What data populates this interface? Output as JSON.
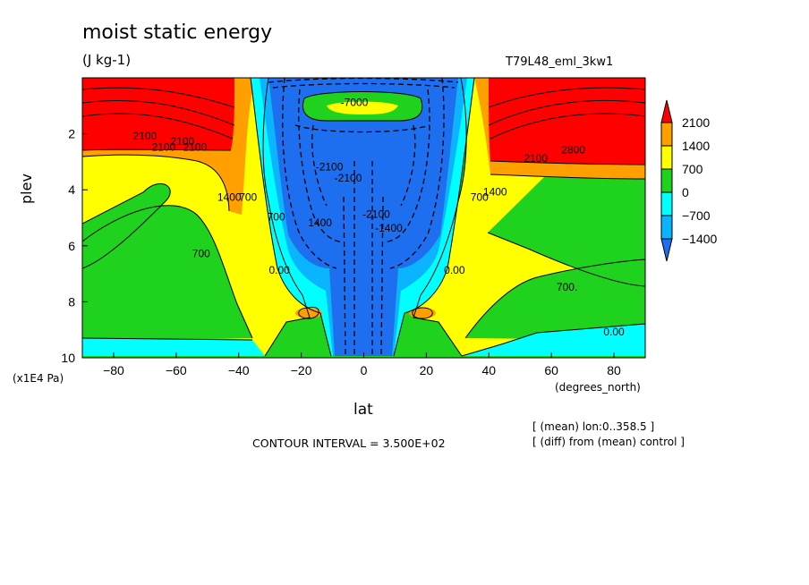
{
  "title": "moist static energy",
  "units": "(J kg-1)",
  "run_label": "T79L48_eml_3kw1",
  "ylabel": "plev",
  "ylabel_scale": "(x1E4 Pa)",
  "xlabel": "lat",
  "xlabel_units": "(degrees_north)",
  "contour_interval": "CONTOUR INTERVAL = 3.500E+02",
  "notes": [
    "[ (mean) lon:0..358.5 ]",
    "[ (diff) from (mean) control ]"
  ],
  "colors": {
    "lt_neg1400": "#1e6ef0",
    "neg1400_neg700": "#0ab4ff",
    "neg700_0": "#00ffff",
    "0_700": "#1ed21e",
    "700_1400": "#ffff00",
    "1400_2100": "#ffa000",
    "gt_2100": "#ff0000"
  },
  "chart_data": {
    "type": "heatmap",
    "title": "moist static energy",
    "subtitle": "(J kg-1)",
    "xlabel": "lat",
    "ylabel": "plev",
    "xlim": [
      -90,
      90
    ],
    "ylim": [
      10,
      0
    ],
    "grid": false,
    "x_ticks": [
      -80,
      -60,
      -40,
      -20,
      0,
      20,
      40,
      60,
      80
    ],
    "y_ticks": [
      2,
      4,
      6,
      8,
      10
    ],
    "colorbar": {
      "position": "right",
      "levels": [
        -1400,
        -700,
        0,
        700,
        1400,
        2100
      ],
      "tick_labels": [
        "2100",
        "1400",
        "700",
        "0",
        "−700",
        "−1400"
      ]
    },
    "contour_labels": [
      {
        "text": "2100",
        "lat": -70,
        "plev": 2.2
      },
      {
        "text": "2100",
        "lat": -64,
        "plev": 2.6
      },
      {
        "text": "2100",
        "lat": -58,
        "plev": 2.4
      },
      {
        "text": "2100",
        "lat": -54,
        "plev": 2.6
      },
      {
        "text": "1400",
        "lat": -43,
        "plev": 4.4
      },
      {
        "text": "700",
        "lat": -52,
        "plev": 6.4
      },
      {
        "text": "700",
        "lat": -37,
        "plev": 4.4
      },
      {
        "text": "700",
        "lat": -28,
        "plev": 5.1
      },
      {
        "text": "0.00",
        "lat": -27,
        "plev": 7.0
      },
      {
        "text": "1400",
        "lat": -14,
        "plev": 5.3
      },
      {
        "text": "-2100",
        "lat": -11,
        "plev": 3.3
      },
      {
        "text": "-2100",
        "lat": -5,
        "plev": 3.7
      },
      {
        "text": "-2100",
        "lat": 4,
        "plev": 5.0
      },
      {
        "text": "-1400",
        "lat": 8,
        "plev": 5.5
      },
      {
        "text": "-7000",
        "lat": -3,
        "plev": 1.0
      },
      {
        "text": "2800",
        "lat": 67,
        "plev": 2.7
      },
      {
        "text": "2100",
        "lat": 55,
        "plev": 3.0
      },
      {
        "text": "700",
        "lat": 37,
        "plev": 4.4
      },
      {
        "text": "1400",
        "lat": 42,
        "plev": 4.2
      },
      {
        "text": "0.00",
        "lat": 29,
        "plev": 7.0
      },
      {
        "text": "700.",
        "lat": 65,
        "plev": 7.6
      },
      {
        "text": "0.00",
        "lat": 80,
        "plev": 9.2
      }
    ]
  }
}
